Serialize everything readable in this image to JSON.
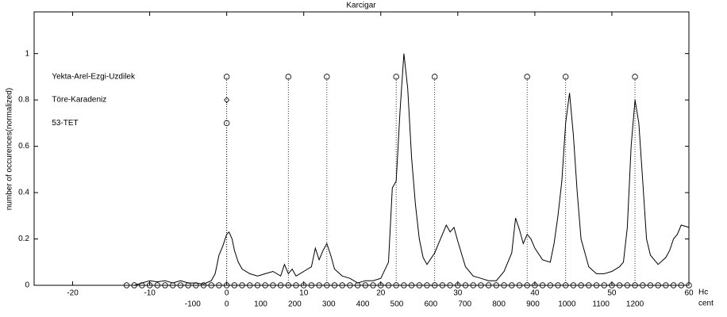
{
  "chart_data": {
    "type": "line",
    "title": "Karcigar",
    "y_label": "number of occurences(normalized)",
    "x_label": "Hc",
    "x2_label": "cent",
    "xlim": [
      -25,
      60
    ],
    "ylim": [
      0,
      1.18
    ],
    "x2lim": [
      -566.04,
      1358.49
    ],
    "xticks": [
      -20,
      -10,
      0,
      10,
      20,
      30,
      40,
      50,
      60
    ],
    "yticks": [
      0,
      0.2,
      0.4,
      0.6,
      0.8,
      1
    ],
    "x2ticks": [
      -100,
      0,
      100,
      200,
      300,
      400,
      500,
      600,
      700,
      800,
      900,
      1000,
      1100,
      1200
    ],
    "grid": false,
    "series": [
      {
        "color": "#000000",
        "x": [
          -13,
          -12,
          -11,
          -10,
          -9,
          -8,
          -7,
          -6,
          -5,
          -4,
          -3,
          -2,
          -1.5,
          -1,
          -0.5,
          0,
          0.3,
          0.7,
          1,
          1.5,
          2,
          3,
          4,
          5,
          6,
          7,
          7.5,
          8,
          8.5,
          9,
          10,
          11,
          11.5,
          12,
          12.5,
          13,
          13.5,
          14,
          15,
          16,
          17,
          18,
          19,
          20,
          21,
          21.5,
          22,
          22.5,
          23,
          23.5,
          24,
          24.5,
          25,
          25.5,
          26,
          27,
          28,
          28.5,
          29,
          29.5,
          30,
          31,
          32,
          33,
          34,
          35,
          36,
          37,
          37.5,
          38,
          38.5,
          39,
          39.5,
          40,
          41,
          42,
          42.5,
          43,
          43.5,
          44,
          44.5,
          45,
          45.5,
          46,
          47,
          48,
          49,
          50,
          51,
          51.5,
          52,
          52.5,
          53,
          53.5,
          54,
          54.5,
          55,
          56,
          57,
          57.5,
          58,
          58.5,
          59,
          60
        ],
        "values": [
          0,
          0,
          0.01,
          0.02,
          0.015,
          0.02,
          0.01,
          0.02,
          0.01,
          0.01,
          0.005,
          0.02,
          0.05,
          0.13,
          0.17,
          0.22,
          0.23,
          0.2,
          0.15,
          0.1,
          0.07,
          0.05,
          0.04,
          0.05,
          0.06,
          0.04,
          0.09,
          0.05,
          0.07,
          0.04,
          0.06,
          0.08,
          0.16,
          0.11,
          0.15,
          0.18,
          0.13,
          0.07,
          0.04,
          0.03,
          0.01,
          0.02,
          0.02,
          0.03,
          0.1,
          0.42,
          0.45,
          0.75,
          1.0,
          0.85,
          0.55,
          0.35,
          0.2,
          0.12,
          0.09,
          0.14,
          0.22,
          0.26,
          0.23,
          0.25,
          0.19,
          0.08,
          0.04,
          0.03,
          0.02,
          0.02,
          0.06,
          0.14,
          0.29,
          0.24,
          0.18,
          0.22,
          0.2,
          0.16,
          0.11,
          0.1,
          0.18,
          0.3,
          0.45,
          0.7,
          0.83,
          0.65,
          0.4,
          0.2,
          0.08,
          0.05,
          0.05,
          0.06,
          0.08,
          0.1,
          0.25,
          0.6,
          0.8,
          0.7,
          0.45,
          0.2,
          0.13,
          0.09,
          0.12,
          0.15,
          0.2,
          0.22,
          0.26,
          0.25
        ]
      }
    ],
    "markers": [
      {
        "name": "Yekta-Arel-Ezgi-Uzdilek",
        "marker": "circle",
        "level": 0.9,
        "x": [
          0,
          8,
          13,
          22,
          27,
          39,
          44,
          53
        ]
      },
      {
        "name": "Töre-Karadeniz",
        "marker": "diamond",
        "level": 0.8,
        "x": [
          0
        ]
      },
      {
        "name": "53-TET",
        "marker": "circle",
        "level": 0.7,
        "x": [
          0
        ]
      }
    ],
    "axis_points": {
      "marker": "circle",
      "level": 0,
      "x": [
        -13,
        -12,
        -11,
        -10,
        -9,
        -8,
        -7,
        -6,
        -5,
        -4,
        -3,
        -2,
        -1,
        0,
        1,
        2,
        3,
        4,
        5,
        6,
        7,
        8,
        9,
        10,
        11,
        12,
        13,
        14,
        15,
        16,
        17,
        18,
        19,
        20,
        21,
        22,
        23,
        24,
        25,
        26,
        27,
        28,
        29,
        30,
        31,
        32,
        33,
        34,
        35,
        36,
        37,
        38,
        39,
        40,
        41,
        42,
        43,
        44,
        45,
        46,
        47,
        48,
        49,
        50,
        51,
        52,
        53,
        54,
        55,
        56,
        57,
        58,
        59,
        60
      ]
    }
  }
}
